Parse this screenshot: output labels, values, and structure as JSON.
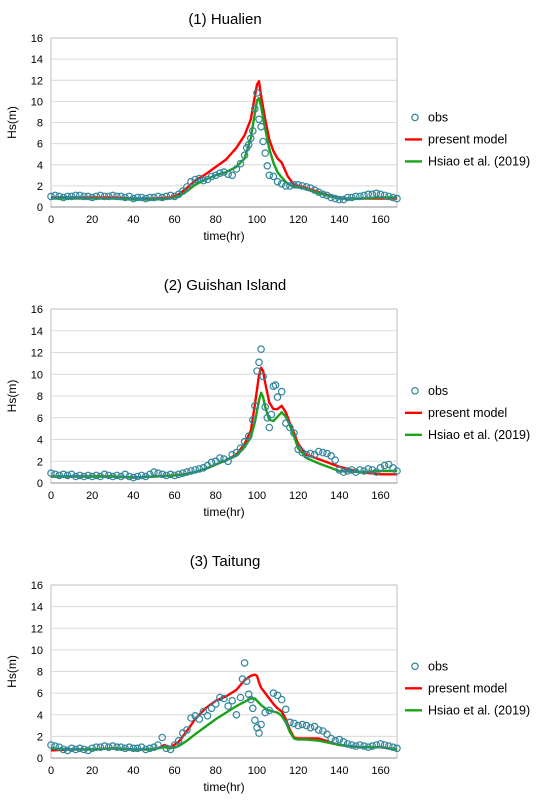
{
  "chart_data": [
    {
      "type": "line",
      "title": "(1) Hualien",
      "xlabel": "time(hr)",
      "ylabel": "Hs(m)",
      "xlim": [
        0,
        168
      ],
      "ylim": [
        0,
        16
      ],
      "xticks": [
        0,
        20,
        40,
        60,
        80,
        100,
        120,
        140,
        160
      ],
      "yticks": [
        0,
        2,
        4,
        6,
        8,
        10,
        12,
        14,
        16
      ],
      "grid": "horizontal",
      "legend": "right",
      "series": [
        {
          "name": "obs",
          "kind": "scatter",
          "color": "#31859c",
          "x": [
            0,
            2,
            4,
            6,
            8,
            10,
            12,
            14,
            16,
            18,
            20,
            22,
            24,
            26,
            28,
            30,
            32,
            34,
            36,
            38,
            40,
            42,
            44,
            46,
            48,
            50,
            52,
            54,
            56,
            58,
            60,
            62,
            64,
            66,
            68,
            70,
            72,
            74,
            76,
            78,
            80,
            82,
            84,
            86,
            88,
            90,
            92,
            94,
            95,
            96,
            97,
            98,
            99,
            100,
            101,
            102,
            103,
            104,
            105,
            106,
            108,
            110,
            112,
            114,
            116,
            118,
            120,
            122,
            124,
            126,
            128,
            130,
            132,
            134,
            136,
            138,
            140,
            142,
            144,
            146,
            148,
            150,
            152,
            154,
            156,
            158,
            160,
            162,
            164,
            166,
            168
          ],
          "y": [
            1.0,
            1.1,
            1.0,
            0.9,
            1.0,
            1.0,
            1.1,
            1.1,
            1.0,
            1.0,
            0.9,
            1.0,
            1.1,
            1.0,
            1.0,
            1.1,
            1.0,
            1.0,
            0.9,
            1.0,
            0.8,
            0.9,
            0.9,
            0.8,
            0.9,
            0.9,
            1.0,
            0.9,
            1.0,
            1.1,
            1.0,
            1.2,
            1.5,
            1.9,
            2.4,
            2.6,
            2.7,
            2.5,
            2.6,
            2.9,
            3.0,
            3.2,
            3.3,
            3.1,
            3.0,
            3.6,
            4.1,
            4.9,
            5.6,
            5.9,
            6.5,
            7.2,
            9.3,
            10.8,
            8.3,
            7.6,
            6.2,
            5.1,
            3.9,
            3.0,
            2.9,
            2.4,
            2.2,
            2.0,
            2.0,
            2.1,
            2.1,
            2.0,
            1.9,
            1.8,
            1.6,
            1.4,
            1.2,
            1.1,
            0.9,
            0.8,
            0.7,
            0.7,
            0.9,
            0.9,
            1.0,
            1.0,
            1.1,
            1.2,
            1.2,
            1.3,
            1.2,
            1.1,
            1.0,
            0.9,
            0.8
          ]
        },
        {
          "name": "present model",
          "kind": "line",
          "color": "#ff0000",
          "x": [
            0,
            10,
            20,
            30,
            40,
            50,
            58,
            62,
            66,
            70,
            75,
            80,
            85,
            90,
            94,
            97,
            99,
            100,
            101,
            102,
            104,
            106,
            108,
            110,
            112,
            115,
            118,
            122,
            130,
            140,
            150,
            160,
            168
          ],
          "y": [
            0.9,
            0.9,
            0.9,
            0.9,
            0.8,
            0.8,
            0.9,
            1.2,
            1.8,
            2.5,
            3.1,
            3.8,
            4.5,
            5.6,
            6.8,
            8.3,
            10.5,
            11.6,
            11.9,
            10.5,
            8.3,
            6.4,
            5.3,
            4.6,
            4.2,
            2.9,
            2.1,
            1.9,
            1.4,
            0.8,
            0.8,
            0.8,
            0.8
          ]
        },
        {
          "name": "Hsiao et al. (2019)",
          "kind": "line",
          "color": "#1aa31a",
          "x": [
            0,
            10,
            20,
            30,
            40,
            50,
            58,
            62,
            66,
            70,
            75,
            80,
            85,
            90,
            94,
            97,
            99,
            100,
            101,
            102,
            104,
            106,
            108,
            110,
            112,
            115,
            118,
            122,
            130,
            140,
            150,
            160,
            168
          ],
          "y": [
            0.8,
            0.8,
            0.8,
            0.8,
            0.7,
            0.7,
            0.8,
            1.0,
            1.5,
            2.1,
            2.6,
            3.0,
            3.3,
            3.8,
            4.6,
            6.5,
            8.9,
            10.1,
            10.3,
            9.5,
            7.4,
            5.5,
            4.2,
            3.3,
            2.8,
            2.2,
            1.9,
            1.8,
            1.3,
            0.8,
            0.8,
            0.9,
            0.9
          ]
        }
      ]
    },
    {
      "type": "line",
      "title": "(2) Guishan Island",
      "xlabel": "time(hr)",
      "ylabel": "Hs(m)",
      "xlim": [
        0,
        168
      ],
      "ylim": [
        0,
        16
      ],
      "xticks": [
        0,
        20,
        40,
        60,
        80,
        100,
        120,
        140,
        160
      ],
      "yticks": [
        0,
        2,
        4,
        6,
        8,
        10,
        12,
        14,
        16
      ],
      "grid": "horizontal",
      "legend": "right",
      "series": [
        {
          "name": "obs",
          "kind": "scatter",
          "color": "#31859c",
          "x": [
            0,
            2,
            4,
            6,
            8,
            10,
            12,
            14,
            16,
            18,
            20,
            22,
            24,
            26,
            28,
            30,
            32,
            34,
            36,
            38,
            40,
            42,
            44,
            46,
            48,
            50,
            52,
            54,
            56,
            58,
            60,
            62,
            64,
            66,
            68,
            70,
            72,
            74,
            76,
            78,
            80,
            82,
            84,
            86,
            88,
            90,
            92,
            94,
            96,
            98,
            99,
            100,
            101,
            102,
            103,
            104,
            105,
            106,
            107,
            108,
            109,
            110,
            112,
            114,
            116,
            118,
            120,
            122,
            124,
            126,
            128,
            130,
            132,
            134,
            136,
            138,
            140,
            142,
            144,
            146,
            148,
            150,
            152,
            154,
            156,
            158,
            160,
            162,
            164,
            166,
            168
          ],
          "y": [
            0.9,
            0.8,
            0.7,
            0.8,
            0.7,
            0.8,
            0.6,
            0.7,
            0.6,
            0.7,
            0.6,
            0.7,
            0.6,
            0.8,
            0.7,
            0.6,
            0.7,
            0.6,
            0.8,
            0.6,
            0.5,
            0.6,
            0.7,
            0.6,
            0.8,
            1.0,
            0.9,
            0.8,
            0.7,
            0.8,
            0.7,
            0.8,
            0.9,
            1.0,
            1.1,
            1.2,
            1.3,
            1.4,
            1.6,
            1.9,
            2.0,
            2.3,
            2.2,
            2.0,
            2.6,
            2.8,
            3.2,
            3.8,
            4.3,
            5.8,
            7.1,
            10.3,
            11.1,
            12.3,
            9.8,
            7.0,
            6.0,
            5.1,
            6.3,
            8.9,
            9.0,
            7.9,
            8.4,
            5.5,
            5.1,
            4.6,
            3.1,
            2.8,
            2.6,
            2.7,
            2.6,
            2.9,
            2.8,
            2.7,
            2.5,
            2.1,
            1.2,
            1.0,
            1.1,
            1.2,
            1.0,
            1.2,
            1.1,
            1.3,
            1.2,
            1.0,
            1.4,
            1.6,
            1.7,
            1.4,
            1.1
          ]
        },
        {
          "name": "present model",
          "kind": "line",
          "color": "#ff0000",
          "x": [
            0,
            10,
            20,
            30,
            40,
            50,
            60,
            65,
            70,
            75,
            80,
            85,
            90,
            94,
            97,
            99,
            101,
            102,
            103,
            104,
            106,
            108,
            110,
            112,
            114,
            116,
            118,
            120,
            124,
            130,
            140,
            150,
            160,
            168
          ],
          "y": [
            0.6,
            0.6,
            0.6,
            0.6,
            0.5,
            0.6,
            0.7,
            0.8,
            1.0,
            1.3,
            1.7,
            2.1,
            2.6,
            3.6,
            4.8,
            7.2,
            9.9,
            10.6,
            10.3,
            9.2,
            7.4,
            6.8,
            6.8,
            7.1,
            6.5,
            5.5,
            4.6,
            3.6,
            2.6,
            2.2,
            1.5,
            1.0,
            0.8,
            0.8
          ]
        },
        {
          "name": "Hsiao et al. (2019)",
          "kind": "line",
          "color": "#1aa31a",
          "x": [
            0,
            10,
            20,
            30,
            40,
            50,
            60,
            65,
            70,
            75,
            80,
            85,
            90,
            94,
            97,
            99,
            101,
            102,
            103,
            104,
            106,
            108,
            110,
            112,
            114,
            116,
            118,
            120,
            124,
            130,
            140,
            150,
            160,
            168
          ],
          "y": [
            0.6,
            0.6,
            0.6,
            0.6,
            0.5,
            0.6,
            0.7,
            0.8,
            1.0,
            1.3,
            1.7,
            2.1,
            2.5,
            3.3,
            4.2,
            5.6,
            7.6,
            8.3,
            7.9,
            7.0,
            5.8,
            5.7,
            6.1,
            6.5,
            6.1,
            5.3,
            4.3,
            3.2,
            2.3,
            1.8,
            1.1,
            1.0,
            1.1,
            1.1
          ]
        }
      ]
    },
    {
      "type": "line",
      "title": "(3) Taitung",
      "xlabel": "time(hr)",
      "ylabel": "Hs(m)",
      "xlim": [
        0,
        168
      ],
      "ylim": [
        0,
        16
      ],
      "xticks": [
        0,
        20,
        40,
        60,
        80,
        100,
        120,
        140,
        160
      ],
      "yticks": [
        0,
        2,
        4,
        6,
        8,
        10,
        12,
        14,
        16
      ],
      "grid": "horizontal",
      "legend": "right",
      "series": [
        {
          "name": "obs",
          "kind": "scatter",
          "color": "#31859c",
          "x": [
            0,
            2,
            4,
            6,
            8,
            10,
            12,
            14,
            16,
            18,
            20,
            22,
            24,
            26,
            28,
            30,
            32,
            34,
            36,
            38,
            40,
            42,
            44,
            46,
            48,
            50,
            52,
            54,
            56,
            58,
            60,
            62,
            64,
            66,
            68,
            70,
            72,
            74,
            76,
            78,
            80,
            82,
            84,
            86,
            88,
            90,
            92,
            93,
            94,
            95,
            96,
            97,
            98,
            99,
            100,
            101,
            102,
            104,
            106,
            108,
            110,
            112,
            114,
            116,
            118,
            120,
            122,
            124,
            126,
            128,
            130,
            132,
            134,
            136,
            138,
            140,
            142,
            144,
            146,
            148,
            150,
            152,
            154,
            156,
            158,
            160,
            162,
            164,
            166,
            168
          ],
          "y": [
            1.2,
            1.1,
            1.0,
            0.8,
            0.7,
            0.9,
            0.8,
            0.9,
            0.8,
            0.7,
            0.9,
            1.0,
            1.0,
            1.1,
            1.0,
            1.1,
            1.0,
            1.0,
            0.9,
            1.0,
            0.9,
            0.9,
            1.0,
            0.8,
            0.9,
            1.0,
            1.2,
            1.9,
            0.9,
            0.8,
            1.2,
            1.6,
            2.3,
            2.6,
            3.7,
            3.9,
            3.6,
            4.3,
            3.9,
            4.6,
            5.0,
            5.6,
            5.5,
            4.8,
            5.3,
            4.0,
            5.6,
            7.3,
            8.8,
            7.1,
            5.9,
            5.4,
            4.6,
            3.5,
            2.8,
            2.3,
            3.1,
            4.2,
            4.4,
            6.0,
            5.8,
            5.4,
            4.5,
            3.3,
            3.2,
            3.0,
            3.1,
            3.0,
            2.8,
            2.9,
            2.6,
            2.5,
            2.2,
            1.8,
            1.6,
            1.7,
            1.5,
            1.3,
            1.2,
            1.1,
            1.2,
            1.1,
            1.0,
            1.1,
            1.2,
            1.3,
            1.2,
            1.1,
            1.0,
            0.9
          ]
        },
        {
          "name": "present model",
          "kind": "line",
          "color": "#ff0000",
          "x": [
            0,
            10,
            20,
            30,
            40,
            48,
            52,
            55,
            58,
            62,
            66,
            70,
            75,
            80,
            85,
            90,
            94,
            97,
            99,
            100,
            101,
            102,
            104,
            106,
            108,
            110,
            112,
            114,
            116,
            118,
            120,
            124,
            130,
            140,
            150,
            160,
            168
          ],
          "y": [
            0.7,
            0.8,
            0.8,
            0.9,
            0.8,
            0.8,
            0.9,
            1.2,
            1.0,
            1.5,
            2.5,
            3.6,
            4.6,
            5.3,
            5.7,
            6.3,
            7.2,
            7.6,
            7.7,
            7.6,
            7.0,
            6.5,
            6.0,
            5.5,
            5.0,
            4.6,
            4.3,
            3.6,
            2.6,
            1.9,
            1.8,
            1.8,
            1.8,
            1.2,
            1.0,
            1.0,
            0.8
          ]
        },
        {
          "name": "Hsiao et al. (2019)",
          "kind": "line",
          "color": "#1aa31a",
          "x": [
            0,
            10,
            20,
            30,
            40,
            48,
            52,
            55,
            58,
            62,
            66,
            70,
            75,
            80,
            85,
            90,
            94,
            97,
            99,
            100,
            101,
            102,
            104,
            106,
            108,
            110,
            112,
            114,
            116,
            118,
            120,
            124,
            130,
            140,
            150,
            160,
            168
          ],
          "y": [
            0.9,
            0.8,
            0.8,
            0.9,
            0.8,
            0.8,
            0.9,
            1.0,
            0.9,
            1.1,
            1.6,
            2.2,
            2.9,
            3.6,
            4.2,
            4.8,
            5.2,
            5.5,
            5.5,
            5.3,
            5.1,
            4.9,
            4.6,
            4.4,
            4.3,
            4.2,
            3.9,
            3.3,
            2.4,
            1.8,
            1.7,
            1.7,
            1.6,
            1.2,
            1.0,
            1.0,
            0.8
          ]
        }
      ]
    }
  ]
}
